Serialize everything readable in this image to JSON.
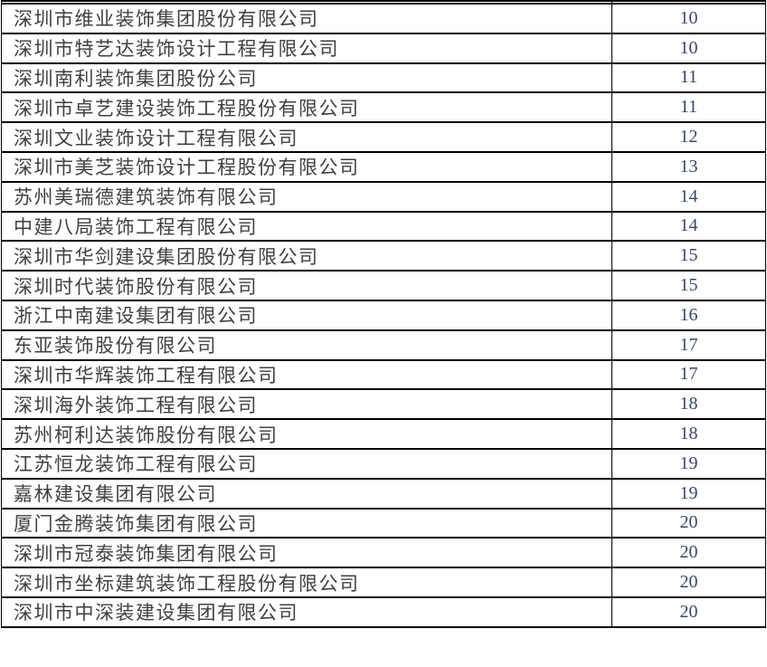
{
  "table": {
    "description_note": "two-column table: company name and number; top row clipped by screenshot edge",
    "rows": [
      {
        "company": "深圳市维业装饰集团股份有限公司",
        "value": "10"
      },
      {
        "company": "深圳市特艺达装饰设计工程有限公司",
        "value": "10"
      },
      {
        "company": "深圳南利装饰集团股份公司",
        "value": "11"
      },
      {
        "company": "深圳市卓艺建设装饰工程股份有限公司",
        "value": "11"
      },
      {
        "company": "深圳文业装饰设计工程有限公司",
        "value": "12"
      },
      {
        "company": "深圳市美芝装饰设计工程股份有限公司",
        "value": "13"
      },
      {
        "company": "苏州美瑞德建筑装饰有限公司",
        "value": "14"
      },
      {
        "company": "中建八局装饰工程有限公司",
        "value": "14"
      },
      {
        "company": "深圳市华剑建设集团股份有限公司",
        "value": "15"
      },
      {
        "company": "深圳时代装饰股份有限公司",
        "value": "15"
      },
      {
        "company": "浙江中南建设集团有限公司",
        "value": "16"
      },
      {
        "company": "东亚装饰股份有限公司",
        "value": "17"
      },
      {
        "company": "深圳市华辉装饰工程有限公司",
        "value": "17"
      },
      {
        "company": "深圳海外装饰工程有限公司",
        "value": "18"
      },
      {
        "company": "苏州柯利达装饰股份有限公司",
        "value": "18"
      },
      {
        "company": "江苏恒龙装饰工程有限公司",
        "value": "19"
      },
      {
        "company": "嘉林建设集团有限公司",
        "value": "19"
      },
      {
        "company": "厦门金腾装饰集团有限公司",
        "value": "20"
      },
      {
        "company": "深圳市冠泰装饰集团有限公司",
        "value": "20"
      },
      {
        "company": "深圳市坐标建筑装饰工程股份有限公司",
        "value": "20"
      },
      {
        "company": "深圳市中深装建设集团有限公司",
        "value": "20"
      }
    ]
  },
  "colors": {
    "border": "#000000",
    "company_text": "#404040",
    "value_text": "#37466b",
    "page_background": "#ffffff"
  }
}
